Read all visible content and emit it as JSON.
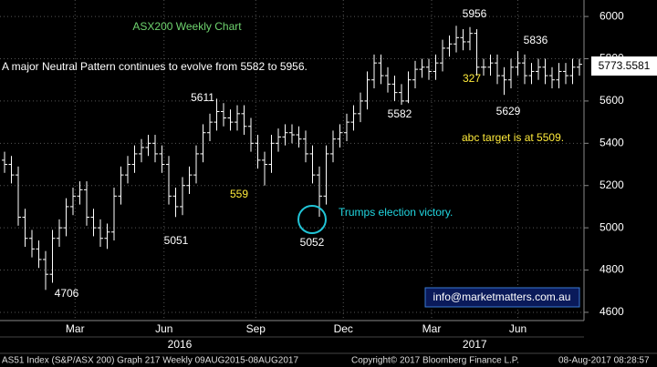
{
  "chart_data": {
    "type": "ohlc",
    "title": "ASX200 Weekly Chart",
    "subtitle": "A major Neutral Pattern continues to evolve from 5582 to 5956.",
    "annotations": [
      "5956",
      "5836",
      "5611",
      "5582",
      "5629",
      "5051",
      "5052",
      "4706",
      "559",
      "327",
      "abc target is at 5509.",
      "Trumps election victory.",
      "info@marketmatters.com.au"
    ],
    "footer": [
      "AS51 Index (S&P/ASX 200) Graph 217  Weekly 09AUG2015-08AUG2017",
      "Copyright© 2017 Bloomberg Finance L.P.",
      "08-Aug-2017 08:28:57"
    ],
    "color": "#ffffff",
    "grid": true,
    "ylim": [
      4561,
      6078
    ],
    "yticks": [
      4600,
      4800,
      5000,
      5200,
      5400,
      5600,
      5800,
      6000
    ],
    "xlim": [
      -0.667,
      84.667
    ],
    "xticks": [
      {
        "value": 10.3,
        "label": "Mar"
      },
      {
        "value": 23.3,
        "label": "Jun"
      },
      {
        "value": 36.7,
        "label": "Sep"
      },
      {
        "value": 49.5,
        "label": "Dec"
      },
      {
        "value": 62.4,
        "label": "Mar"
      },
      {
        "value": 75,
        "label": "Jun"
      }
    ],
    "year_ticks": [
      {
        "value": 25.6,
        "label": "2016"
      },
      {
        "value": 68.7,
        "label": "2017"
      }
    ],
    "open": [
      5320,
      5300,
      5250,
      5050,
      4950,
      4900,
      4850,
      4780,
      4950,
      5000,
      5100,
      5150,
      5180,
      5050,
      5000,
      4950,
      4980,
      5150,
      5250,
      5300,
      5350,
      5380,
      5400,
      5350,
      5300,
      5150,
      5100,
      5200,
      5250,
      5350,
      5450,
      5500,
      5550,
      5520,
      5500,
      5540,
      5480,
      5400,
      5320,
      5300,
      5400,
      5430,
      5450,
      5440,
      5420,
      5350,
      5250,
      5150,
      5350,
      5420,
      5450,
      5500,
      5540,
      5600,
      5700,
      5780,
      5720,
      5680,
      5640,
      5600,
      5700,
      5750,
      5760,
      5740,
      5780,
      5850,
      5870,
      5900,
      5880,
      5920,
      5760,
      5760,
      5780,
      5720,
      5700,
      5760,
      5780,
      5720,
      5740,
      5760,
      5720,
      5700,
      5740,
      5720,
      5760
    ],
    "high": [
      5360,
      5340,
      5290,
      5090,
      4990,
      4940,
      4890,
      4990,
      5040,
      5140,
      5190,
      5220,
      5220,
      5090,
      5040,
      5020,
      5190,
      5290,
      5340,
      5390,
      5420,
      5440,
      5440,
      5390,
      5340,
      5190,
      5240,
      5290,
      5390,
      5490,
      5540,
      5611,
      5590,
      5560,
      5580,
      5580,
      5520,
      5440,
      5360,
      5440,
      5470,
      5490,
      5490,
      5480,
      5460,
      5390,
      5290,
      5390,
      5460,
      5490,
      5540,
      5580,
      5640,
      5740,
      5820,
      5820,
      5760,
      5720,
      5680,
      5740,
      5790,
      5800,
      5800,
      5820,
      5890,
      5910,
      5956,
      5940,
      5950,
      5940,
      5800,
      5820,
      5820,
      5760,
      5800,
      5836,
      5820,
      5780,
      5800,
      5800,
      5760,
      5780,
      5780,
      5800,
      5800
    ],
    "low": [
      5260,
      5210,
      5010,
      4910,
      4860,
      4810,
      4706,
      4740,
      4910,
      4960,
      5060,
      5110,
      5010,
      4960,
      4910,
      4900,
      4940,
      5110,
      5210,
      5260,
      5310,
      5340,
      5310,
      5260,
      5110,
      5051,
      5060,
      5160,
      5210,
      5310,
      5410,
      5460,
      5480,
      5460,
      5460,
      5440,
      5360,
      5280,
      5200,
      5260,
      5360,
      5390,
      5400,
      5380,
      5310,
      5210,
      5052,
      5110,
      5310,
      5380,
      5410,
      5460,
      5500,
      5560,
      5660,
      5680,
      5640,
      5600,
      5582,
      5590,
      5660,
      5710,
      5700,
      5700,
      5740,
      5810,
      5830,
      5840,
      5840,
      5720,
      5720,
      5720,
      5680,
      5629,
      5660,
      5720,
      5680,
      5680,
      5700,
      5680,
      5660,
      5660,
      5680,
      5680,
      5720
    ],
    "close": [
      5300,
      5250,
      5050,
      4950,
      4900,
      4850,
      4780,
      4950,
      5000,
      5100,
      5150,
      5180,
      5050,
      5000,
      4950,
      4980,
      5150,
      5250,
      5300,
      5350,
      5380,
      5400,
      5350,
      5300,
      5150,
      5100,
      5200,
      5250,
      5350,
      5450,
      5500,
      5550,
      5520,
      5500,
      5540,
      5480,
      5400,
      5320,
      5300,
      5400,
      5430,
      5450,
      5440,
      5420,
      5350,
      5250,
      5150,
      5350,
      5420,
      5450,
      5500,
      5540,
      5600,
      5700,
      5780,
      5720,
      5680,
      5640,
      5600,
      5700,
      5750,
      5760,
      5740,
      5780,
      5850,
      5870,
      5900,
      5880,
      5920,
      5760,
      5760,
      5780,
      5720,
      5700,
      5760,
      5780,
      5720,
      5740,
      5760,
      5720,
      5700,
      5740,
      5720,
      5760,
      5773.5581
    ]
  }
}
